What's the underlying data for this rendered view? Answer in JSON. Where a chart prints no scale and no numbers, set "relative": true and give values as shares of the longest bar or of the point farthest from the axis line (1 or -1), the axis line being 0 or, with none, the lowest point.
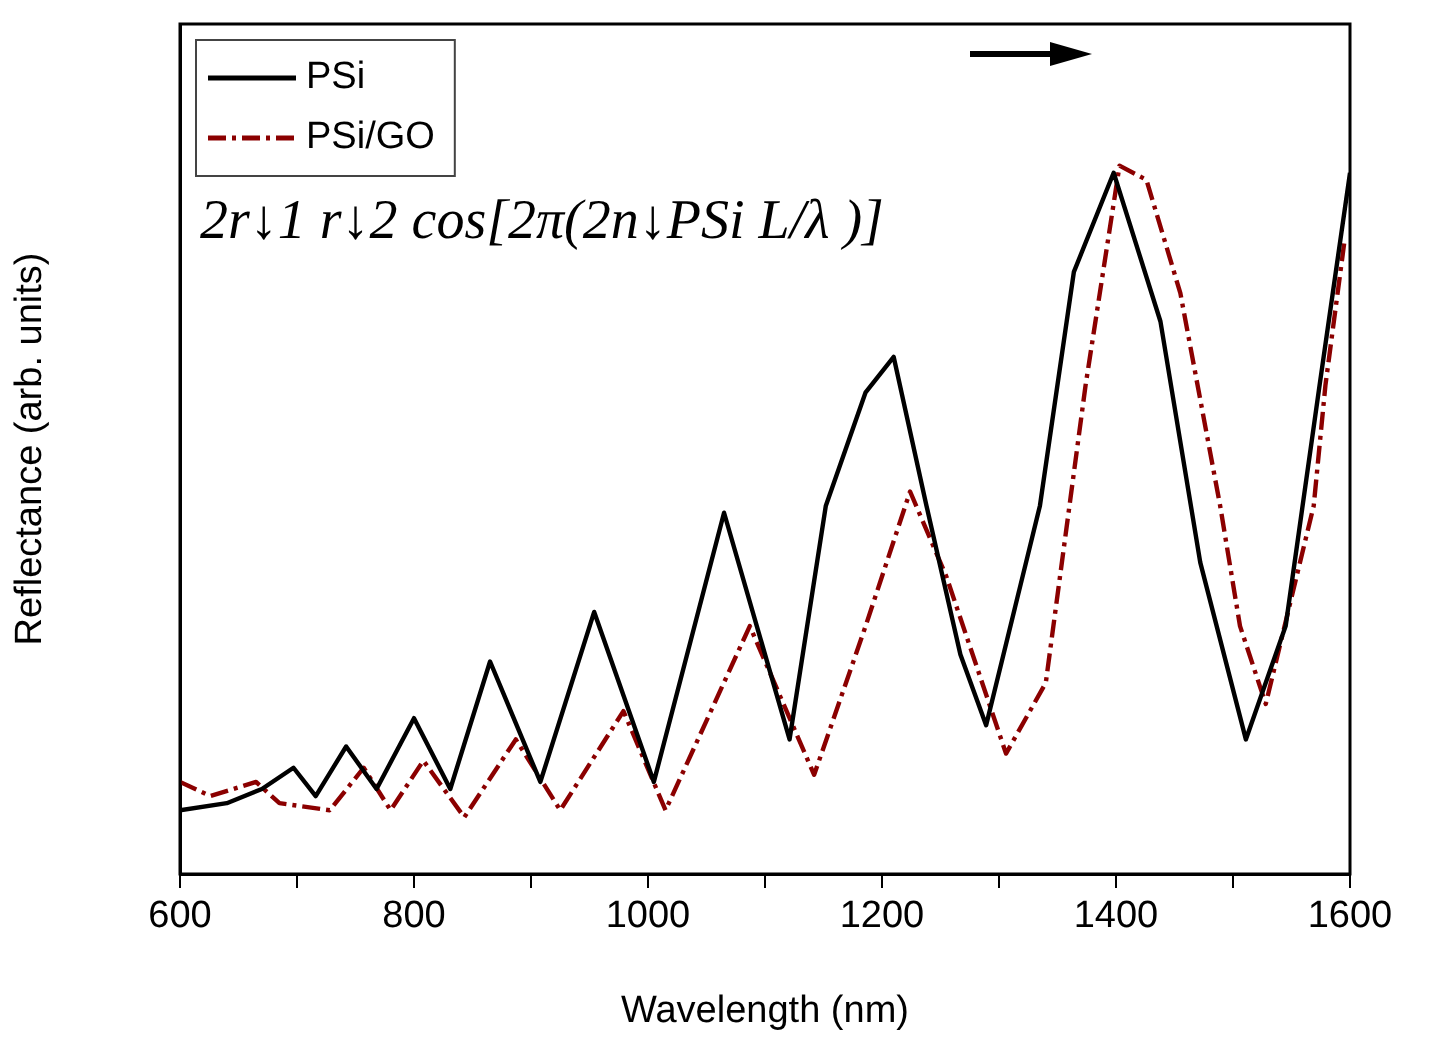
{
  "chart_data": {
    "type": "line",
    "relative": true,
    "xlabel": "Wavelength (nm)",
    "ylabel": "Reflectance (arb. units)",
    "xlim": [
      600,
      1600
    ],
    "xticks": [
      600,
      {
        "value": 700,
        "label": null
      },
      800,
      {
        "value": 900,
        "label": null
      },
      1000,
      {
        "value": 1100,
        "label": null
      },
      1200,
      {
        "value": 1300,
        "label": null
      },
      1400,
      {
        "value": 1500,
        "label": null
      },
      1600
    ],
    "legend": "top left",
    "grid": false,
    "marker": "none",
    "annotations": [
      "2r↓1 r↓2 cos[2π(2n↓PSi L/λ )]"
    ],
    "series": [
      {
        "name": "PSi",
        "color": "#000000",
        "line_style": "solid",
        "x": [
          600,
          640,
          670,
          697,
          716,
          742,
          768,
          800,
          831,
          865,
          908,
          954,
          1005,
          1065,
          1121,
          1152,
          1186,
          1210,
          1238,
          1267,
          1289,
          1335,
          1364,
          1398,
          1438,
          1472,
          1511,
          1545,
          1574,
          1600
        ],
        "values": [
          0.09,
          0.1,
          0.12,
          0.15,
          0.11,
          0.18,
          0.12,
          0.22,
          0.12,
          0.3,
          0.13,
          0.37,
          0.13,
          0.51,
          0.19,
          0.52,
          0.68,
          0.73,
          0.52,
          0.31,
          0.21,
          0.52,
          0.85,
          0.99,
          0.78,
          0.44,
          0.19,
          0.35,
          0.69,
          0.99
        ]
      },
      {
        "name": "PSi/GO",
        "color": "#8b0000",
        "line_style": "dashdot",
        "x": [
          600,
          626,
          665,
          685,
          728,
          757,
          780,
          808,
          843,
          887,
          925,
          979,
          1015,
          1087,
          1142,
          1186,
          1224,
          1255,
          1306,
          1340,
          1357,
          1374,
          1403,
          1426,
          1455,
          1489,
          1506,
          1528,
          1569,
          1579,
          1595
        ],
        "values": [
          0.13,
          0.11,
          0.13,
          0.1,
          0.09,
          0.15,
          0.09,
          0.16,
          0.08,
          0.19,
          0.09,
          0.23,
          0.09,
          0.35,
          0.14,
          0.35,
          0.54,
          0.42,
          0.17,
          0.27,
          0.48,
          0.69,
          1.0,
          0.98,
          0.82,
          0.52,
          0.35,
          0.24,
          0.52,
          0.69,
          0.89
        ]
      }
    ]
  }
}
